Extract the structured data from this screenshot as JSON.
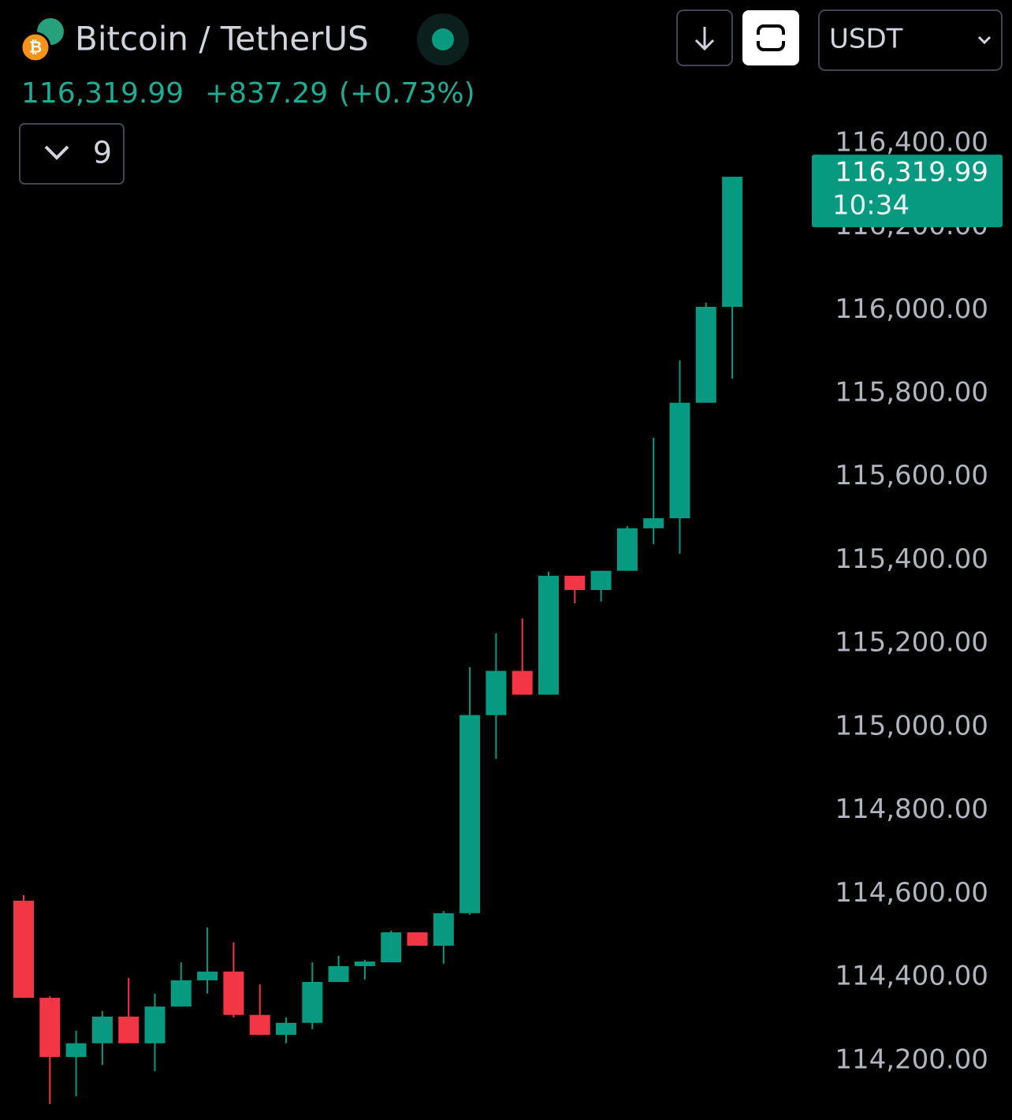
{
  "header": {
    "title": "Bitcoin / TetherUS",
    "price": "116,319.99",
    "change": "+837.29",
    "change_pct": "(+0.73%)",
    "indicator_count": "9",
    "currency": "USDT"
  },
  "chart_data": {
    "type": "candlestick",
    "up_color": "#089981",
    "down_color": "#f23645",
    "open": [
      114584,
      114351,
      114209,
      114242,
      114306,
      114242,
      114330,
      114393,
      114414,
      114310,
      114262,
      114291,
      114389,
      114427,
      114436,
      114508,
      114476,
      114554,
      115029,
      115135,
      115078,
      115363,
      115329,
      115375,
      115477,
      115501,
      115778,
      116008
    ],
    "high": [
      114597,
      114355,
      114272,
      114319,
      114399,
      114361,
      114436,
      114520,
      114484,
      114383,
      114304,
      114436,
      114452,
      114442,
      114512,
      114508,
      114559,
      115144,
      115225,
      115261,
      115373,
      115363,
      115375,
      115482,
      115694,
      115880,
      116018,
      116319.99
    ],
    "low": [
      114351,
      114096,
      114115,
      114190,
      114242,
      114175,
      114330,
      114361,
      114304,
      114262,
      114242,
      114276,
      114389,
      114395,
      114436,
      114476,
      114433,
      114550,
      114924,
      115078,
      115078,
      115297,
      115301,
      115375,
      115439,
      115416,
      115778,
      115836
    ],
    "close": [
      114351,
      114209,
      114242,
      114306,
      114242,
      114330,
      114393,
      114414,
      114310,
      114262,
      114291,
      114389,
      114427,
      114438,
      114508,
      114476,
      114554,
      115029,
      115135,
      115078,
      115363,
      115329,
      115375,
      115477,
      115501,
      115778,
      116008,
      116319.99
    ],
    "ylim": [
      114058,
      116479
    ],
    "yticks": [
      {
        "value": 114200,
        "label": "114,200.00"
      },
      {
        "value": 114400,
        "label": "114,400.00"
      },
      {
        "value": 114600,
        "label": "114,600.00"
      },
      {
        "value": 114800,
        "label": "114,800.00"
      },
      {
        "value": 115000,
        "label": "115,000.00"
      },
      {
        "value": 115200,
        "label": "115,200.00"
      },
      {
        "value": 115400,
        "label": "115,400.00"
      },
      {
        "value": 115600,
        "label": "115,600.00"
      },
      {
        "value": 115800,
        "label": "115,800.00"
      },
      {
        "value": 116000,
        "label": "116,000.00"
      },
      {
        "value": 116200,
        "label": "116,200.00"
      },
      {
        "value": 116400,
        "label": "116,400.00"
      }
    ],
    "last_price": {
      "value": 116319.99,
      "label": "116,319.99"
    },
    "countdown": "10:34",
    "grid": false
  }
}
